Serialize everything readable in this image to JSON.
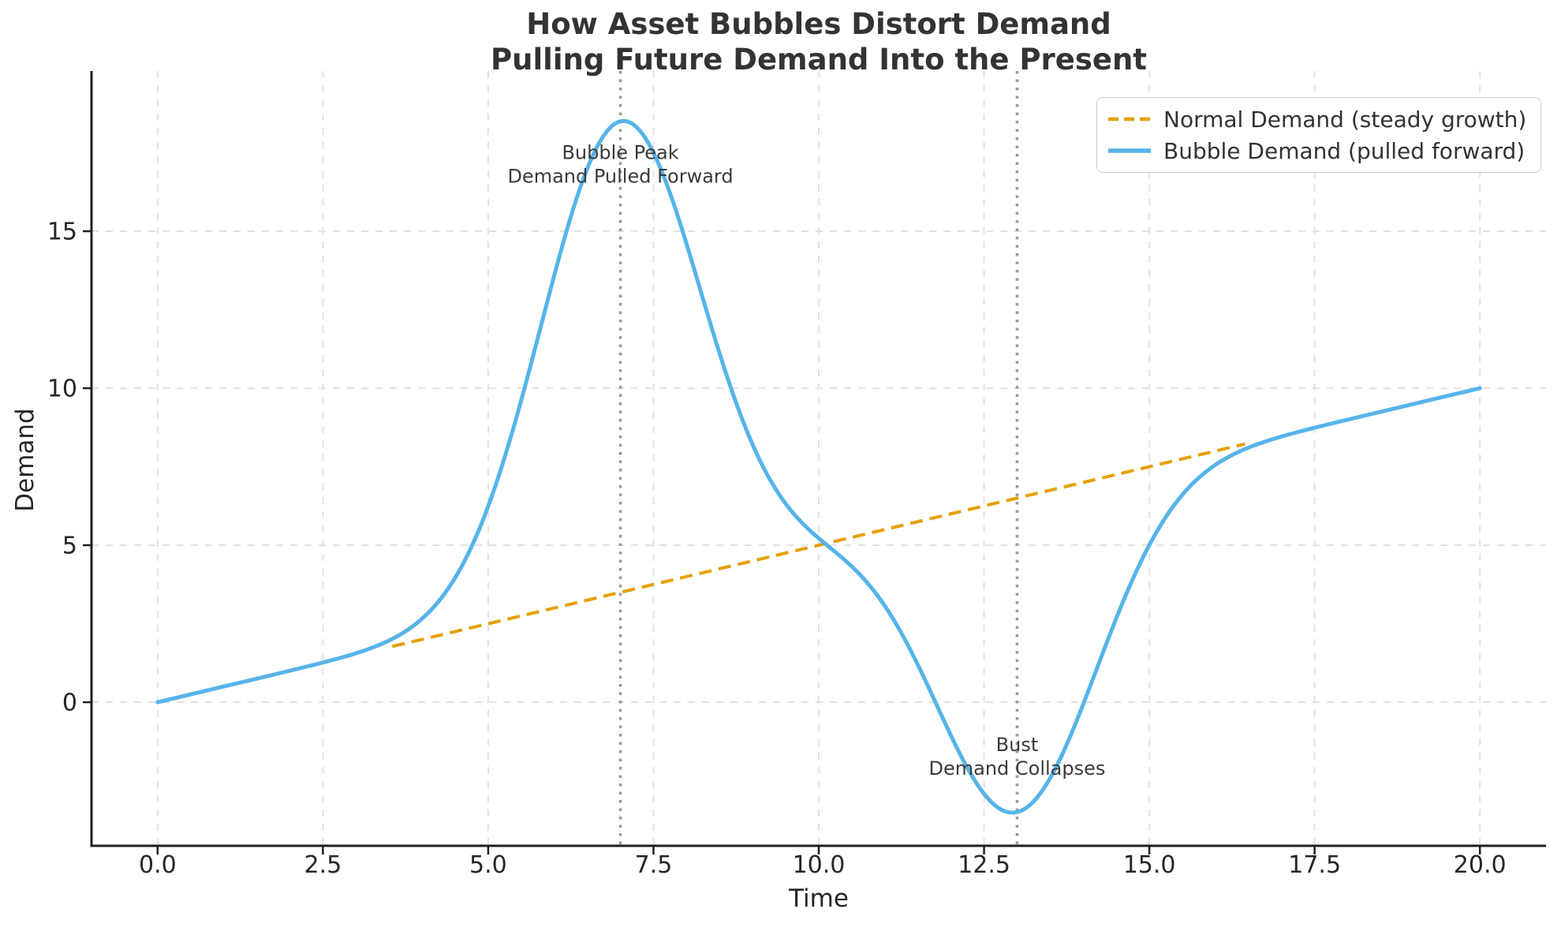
{
  "title": {
    "line1": "How Asset Bubbles Distort Demand",
    "line2": "Pulling Future Demand Into the Present"
  },
  "axes": {
    "xlabel": "Time",
    "ylabel": "Demand",
    "x_tick_labels": [
      "0.0",
      "2.5",
      "5.0",
      "7.5",
      "10.0",
      "12.5",
      "15.0",
      "17.5",
      "20.0"
    ],
    "x_tick_values": [
      0,
      2.5,
      5,
      7.5,
      10,
      12.5,
      15,
      17.5,
      20
    ],
    "y_tick_labels": [
      "0",
      "5",
      "10",
      "15"
    ],
    "y_tick_values": [
      0,
      5,
      10,
      15
    ]
  },
  "legend": {
    "items": [
      {
        "label": "Normal Demand (steady growth)",
        "color": "#E69F00",
        "style": "dashed"
      },
      {
        "label": "Bubble Demand (pulled forward)",
        "color": "#56B4E9",
        "style": "solid"
      }
    ]
  },
  "colors": {
    "normal_line": "#E69F00",
    "bubble_line": "#56B4E9",
    "grid": "#e2e2e2",
    "vline": "#999999",
    "spine": "#1f1f1f",
    "tick_text": "#262626",
    "annotation_text": "#3a3a3a",
    "title_text": "#333333"
  },
  "chart_data": {
    "type": "line",
    "title": "How Asset Bubbles Distort Demand\nPulling Future Demand Into the Present",
    "xlabel": "Time",
    "ylabel": "Demand",
    "xlim": [
      -1,
      21
    ],
    "ylim": [
      -4.573,
      20.102
    ],
    "grid": true,
    "legend_position": "upper right",
    "x": [
      0,
      1,
      2,
      3,
      4,
      5,
      6,
      7,
      8,
      9,
      10,
      11,
      12,
      13,
      14,
      15,
      16,
      17,
      18,
      19,
      20
    ],
    "series": [
      {
        "name": "Normal Demand (steady growth)",
        "color": "#E69F00",
        "style": "dashed",
        "values": [
          0,
          0.5,
          1.0,
          1.5,
          2.0,
          2.5,
          3.0,
          3.5,
          4.0,
          4.5,
          5.0,
          5.5,
          6.0,
          6.5,
          7.0,
          7.5,
          8.0,
          8.5,
          9.0,
          9.5,
          10.0
        ],
        "visible_x_range": [
          3.55,
          16.45
        ]
      },
      {
        "name": "Bubble Demand (pulled forward)",
        "color": "#56B4E9",
        "style": "solid",
        "values": [
          0,
          0.5,
          1.0,
          1.56,
          2.66,
          6.24,
          13.6,
          18.5,
          14.6,
          8.2,
          5.22,
          3.06,
          -1.06,
          -3.5,
          -0.07,
          5.01,
          7.56,
          8.46,
          9.0,
          9.5,
          10.0
        ]
      }
    ],
    "model": {
      "baseline_slope": 0.5,
      "baseline_intercept": 0,
      "x_range": [
        0,
        20
      ],
      "bumps": [
        {
          "amplitude": 15,
          "center": 7,
          "sigma": 1.2
        },
        {
          "amplitude": -10,
          "center": 13,
          "sigma": 1.2
        }
      ]
    },
    "vlines": [
      {
        "x": 7,
        "style": "dotted",
        "color": "#999999"
      },
      {
        "x": 13,
        "style": "dotted",
        "color": "#999999"
      }
    ],
    "annotations": [
      {
        "lines": [
          "Bubble Peak",
          "Demand Pulled Forward"
        ],
        "x": 7,
        "y": 17.3
      },
      {
        "lines": [
          "Bust",
          "Demand Collapses"
        ],
        "x": 13,
        "y": -1.56
      }
    ]
  }
}
